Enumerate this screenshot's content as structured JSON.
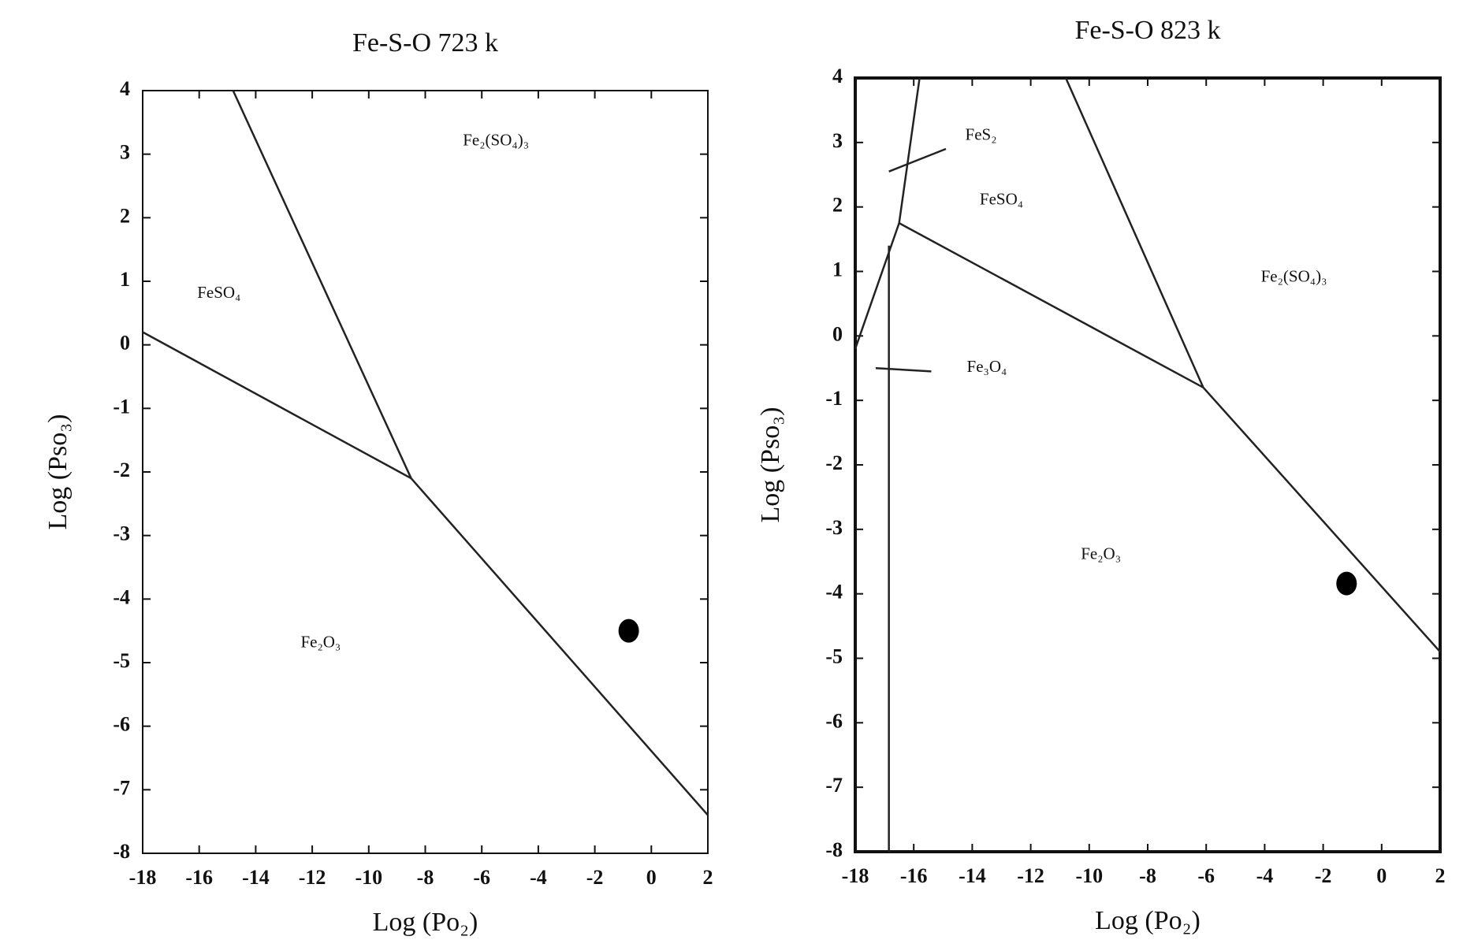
{
  "chart_data": [
    {
      "type": "line",
      "title": "Fe-S-O    723 k",
      "x_label": "Log (Po₂)",
      "y_label": "Log (Pso₃)",
      "xlim": [
        -18,
        2
      ],
      "ylim": [
        -8,
        4
      ],
      "xticks": [
        -18,
        -16,
        -14,
        -12,
        -10,
        -8,
        -6,
        -4,
        -2,
        0,
        2
      ],
      "yticks": [
        -8,
        -7,
        -6,
        -5,
        -4,
        -3,
        -2,
        -1,
        0,
        1,
        2,
        3,
        4
      ],
      "series": [
        {
          "color": "#222",
          "x": [
            -18,
            -8.5
          ],
          "values": [
            0.2,
            -2.1
          ]
        },
        {
          "color": "#222",
          "x": [
            -14.8,
            -8.5
          ],
          "values": [
            4,
            -2.1
          ]
        },
        {
          "color": "#222",
          "x": [
            -8.5,
            2
          ],
          "values": [
            -2.1,
            -7.4
          ]
        }
      ],
      "points": {
        "color": "#000",
        "x": [
          -0.8
        ],
        "values": [
          -4.5
        ]
      },
      "annotations": [
        {
          "text": "FeSO₄",
          "x": -15.3,
          "y": 0.8
        },
        {
          "text": "Fe₂(SO₄)₃",
          "x": -5.5,
          "y": 3.2
        },
        {
          "text": "Fe₂O₃",
          "x": -11.7,
          "y": -4.7
        }
      ]
    },
    {
      "type": "line",
      "title": "Fe-S-O    823 k",
      "x_label": "Log (Po₂)",
      "y_label": "Log (Pso₃)",
      "xlim": [
        -18,
        2
      ],
      "ylim": [
        -8,
        4
      ],
      "xticks": [
        -18,
        -16,
        -14,
        -12,
        -10,
        -8,
        -6,
        -4,
        -2,
        0,
        2
      ],
      "yticks": [
        -8,
        -7,
        -6,
        -5,
        -4,
        -3,
        -2,
        -1,
        0,
        1,
        2,
        3,
        4
      ],
      "series": [
        {
          "color": "#222",
          "x": [
            -16.85,
            -16.85
          ],
          "values": [
            -8,
            1.4
          ]
        },
        {
          "color": "#222",
          "x": [
            -18,
            -16.5
          ],
          "values": [
            -0.2,
            1.75
          ]
        },
        {
          "color": "#222",
          "x": [
            -16.5,
            -15.8
          ],
          "values": [
            1.75,
            4
          ]
        },
        {
          "color": "#222",
          "x": [
            -16.5,
            -6.1
          ],
          "values": [
            1.75,
            -0.8
          ]
        },
        {
          "color": "#222",
          "x": [
            -10.8,
            -6.1
          ],
          "values": [
            4,
            -0.8
          ]
        },
        {
          "color": "#222",
          "x": [
            -6.1,
            2
          ],
          "values": [
            -0.8,
            -4.9
          ]
        },
        {
          "color": "#222",
          "x": [
            -16.85,
            -14.9
          ],
          "values": [
            2.55,
            2.9
          ]
        },
        {
          "color": "#222",
          "x": [
            -17.3,
            -15.4
          ],
          "values": [
            -0.5,
            -0.55
          ]
        }
      ],
      "points": {
        "color": "#000",
        "x": [
          -1.2
        ],
        "values": [
          -3.84
        ]
      },
      "annotations": [
        {
          "text": "FeS₂",
          "x": -13.7,
          "y": 3.1
        },
        {
          "text": "FeSO₄",
          "x": -13.0,
          "y": 2.1
        },
        {
          "text": "Fe₂(SO₄)₃",
          "x": -3.0,
          "y": 0.9
        },
        {
          "text": "Fe₃O₄",
          "x": -13.5,
          "y": -0.5
        },
        {
          "text": "Fe₂O₃",
          "x": -9.6,
          "y": -3.4
        }
      ]
    }
  ]
}
